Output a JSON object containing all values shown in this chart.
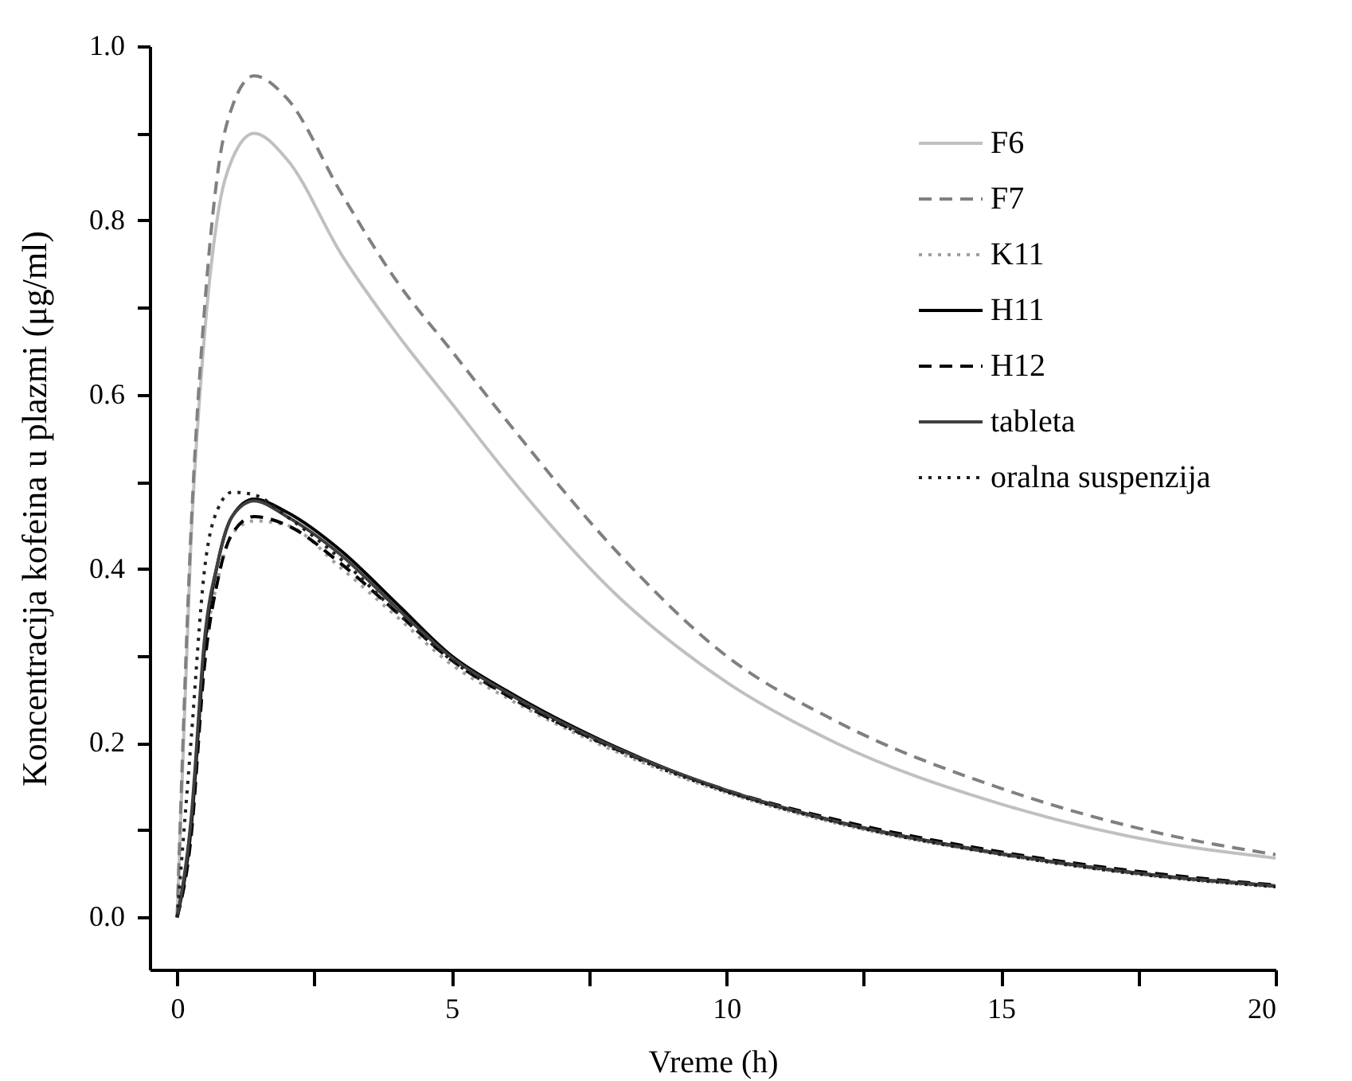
{
  "chart_data": {
    "type": "line",
    "xlabel": "Vreme (h)",
    "ylabel": "Koncentracija kofeina u plazmi (μg/ml)",
    "x": [
      0,
      0.25,
      0.5,
      0.75,
      1,
      1.4,
      2,
      3,
      4,
      5,
      6,
      8,
      10,
      12,
      15,
      18,
      20
    ],
    "series": [
      {
        "name": "F6",
        "color": "#c0c0c0",
        "line_style": "solid",
        "values": [
          0,
          0.43,
          0.67,
          0.81,
          0.87,
          0.9,
          0.87,
          0.76,
          0.67,
          0.59,
          0.51,
          0.37,
          0.27,
          0.2,
          0.13,
          0.085,
          0.068
        ]
      },
      {
        "name": "F7",
        "color": "#808080",
        "line_style": "dashed",
        "values": [
          0,
          0.44,
          0.7,
          0.86,
          0.93,
          0.966,
          0.94,
          0.83,
          0.73,
          0.65,
          0.57,
          0.42,
          0.3,
          0.225,
          0.148,
          0.095,
          0.072
        ]
      },
      {
        "name": "K11",
        "color": "#a0a0a0",
        "line_style": "dotted",
        "values": [
          0,
          0.1,
          0.3,
          0.39,
          0.44,
          0.455,
          0.45,
          0.4,
          0.345,
          0.29,
          0.252,
          0.19,
          0.143,
          0.108,
          0.072,
          0.046,
          0.035
        ]
      },
      {
        "name": "H11",
        "color": "#000000",
        "line_style": "solid",
        "values": [
          0,
          0.1,
          0.31,
          0.41,
          0.46,
          0.48,
          0.465,
          0.42,
          0.36,
          0.3,
          0.26,
          0.195,
          0.145,
          0.11,
          0.073,
          0.047,
          0.036
        ]
      },
      {
        "name": "H12",
        "color": "#000000",
        "line_style": "dashed",
        "values": [
          0,
          0.09,
          0.29,
          0.39,
          0.44,
          0.46,
          0.45,
          0.405,
          0.35,
          0.295,
          0.255,
          0.193,
          0.146,
          0.112,
          0.075,
          0.049,
          0.037
        ]
      },
      {
        "name": "tableta",
        "color": "#404040",
        "line_style": "solid",
        "values": [
          0,
          0.11,
          0.32,
          0.41,
          0.46,
          0.478,
          0.46,
          0.415,
          0.355,
          0.298,
          0.258,
          0.194,
          0.146,
          0.11,
          0.073,
          0.047,
          0.036
        ]
      },
      {
        "name": "oralna suspenzija",
        "color": "#202020",
        "line_style": "dotted",
        "values": [
          0,
          0.2,
          0.4,
          0.47,
          0.488,
          0.485,
          0.46,
          0.41,
          0.35,
          0.295,
          0.255,
          0.192,
          0.144,
          0.109,
          0.072,
          0.046,
          0.035
        ]
      }
    ],
    "xlim": [
      -0.5,
      20
    ],
    "xticks": [
      0,
      {
        "value": 2.5,
        "label": null
      },
      5,
      {
        "value": 7.5,
        "label": null
      },
      10,
      {
        "value": 12.5,
        "label": null
      },
      15,
      {
        "value": 17.5,
        "label": null
      },
      20
    ],
    "ylim": [
      -0.06,
      1.0
    ],
    "yticks": [
      {
        "value": 0,
        "label": "0.0"
      },
      {
        "value": 0.1,
        "label": null
      },
      0.2,
      {
        "value": 0.3,
        "label": null
      },
      0.4,
      {
        "value": 0.5,
        "label": null
      },
      0.6,
      {
        "value": 0.7,
        "label": null
      },
      0.8,
      {
        "value": 0.9,
        "label": null
      },
      {
        "value": 1,
        "label": "1.0"
      }
    ],
    "legend": "top right"
  }
}
